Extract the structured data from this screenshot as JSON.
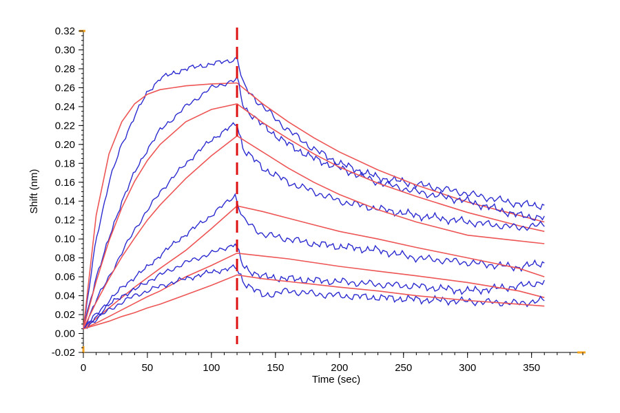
{
  "chart_data": {
    "type": "line",
    "title": "",
    "xlabel": "Time (sec)",
    "ylabel": "Shift (nm)",
    "xlim": [
      0,
      390
    ],
    "ylim": [
      -0.02,
      0.32
    ],
    "x_ticks": [
      0,
      50,
      100,
      150,
      200,
      250,
      300,
      350
    ],
    "x_tick_labels": [
      "0",
      "50",
      "100",
      "150",
      "200",
      "250",
      "300",
      "350"
    ],
    "y_ticks": [
      -0.02,
      0.0,
      0.02,
      0.04,
      0.06,
      0.08,
      0.1,
      0.12,
      0.14,
      0.16,
      0.18,
      0.2,
      0.22,
      0.24,
      0.26,
      0.28,
      0.3,
      0.32
    ],
    "y_tick_labels": [
      "-0.02",
      "0.00",
      "0.02",
      "0.04",
      "0.06",
      "0.08",
      "0.10",
      "0.12",
      "0.14",
      "0.16",
      "0.18",
      "0.20",
      "0.22",
      "0.24",
      "0.26",
      "0.28",
      "0.30",
      "0.32"
    ],
    "grid": false,
    "legend": "none",
    "colors": {
      "measured": "#2b2bd0",
      "fit": "#ee5555",
      "marker": "#dd1111",
      "axis_end": "#f2a21a"
    },
    "vertical_marker_x": 120,
    "series": [
      {
        "kind": "measured",
        "color": "#2b2bd0",
        "x": [
          0,
          10,
          20,
          30,
          40,
          50,
          60,
          80,
          100,
          119,
          120,
          125,
          140,
          160,
          180,
          200,
          230,
          260,
          300,
          340,
          360
        ],
        "y": [
          0.005,
          0.1,
          0.16,
          0.2,
          0.23,
          0.255,
          0.27,
          0.28,
          0.285,
          0.29,
          0.292,
          0.262,
          0.24,
          0.215,
          0.195,
          0.18,
          0.165,
          0.158,
          0.148,
          0.137,
          0.135
        ]
      },
      {
        "kind": "fit",
        "color": "#ee5555",
        "x": [
          0,
          10,
          20,
          30,
          40,
          50,
          60,
          80,
          100,
          120,
          140,
          160,
          180,
          200,
          230,
          260,
          300,
          340,
          360
        ],
        "y": [
          0.005,
          0.125,
          0.19,
          0.224,
          0.243,
          0.253,
          0.258,
          0.262,
          0.264,
          0.265,
          0.243,
          0.224,
          0.207,
          0.192,
          0.173,
          0.157,
          0.139,
          0.125,
          0.118
        ]
      },
      {
        "kind": "measured",
        "color": "#2b2bd0",
        "x": [
          0,
          10,
          20,
          30,
          40,
          50,
          60,
          80,
          100,
          119,
          120,
          125,
          140,
          160,
          180,
          200,
          230,
          260,
          300,
          340,
          360
        ],
        "y": [
          0.005,
          0.06,
          0.1,
          0.14,
          0.17,
          0.195,
          0.215,
          0.24,
          0.26,
          0.268,
          0.27,
          0.24,
          0.22,
          0.2,
          0.185,
          0.175,
          0.16,
          0.15,
          0.14,
          0.125,
          0.122
        ]
      },
      {
        "kind": "fit",
        "color": "#ee5555",
        "x": [
          0,
          10,
          20,
          30,
          40,
          50,
          60,
          80,
          100,
          120,
          140,
          160,
          180,
          200,
          230,
          260,
          300,
          340,
          360
        ],
        "y": [
          0.005,
          0.055,
          0.098,
          0.133,
          0.161,
          0.183,
          0.2,
          0.224,
          0.237,
          0.243,
          0.223,
          0.206,
          0.19,
          0.176,
          0.159,
          0.145,
          0.128,
          0.114,
          0.108
        ]
      },
      {
        "kind": "measured",
        "color": "#2b2bd0",
        "x": [
          0,
          10,
          20,
          30,
          40,
          50,
          60,
          80,
          100,
          119,
          120,
          125,
          140,
          160,
          180,
          200,
          230,
          260,
          300,
          340,
          360
        ],
        "y": [
          0.005,
          0.035,
          0.06,
          0.085,
          0.11,
          0.13,
          0.15,
          0.18,
          0.205,
          0.222,
          0.222,
          0.195,
          0.175,
          0.16,
          0.15,
          0.14,
          0.132,
          0.125,
          0.118,
          0.112,
          0.115
        ]
      },
      {
        "kind": "fit",
        "color": "#ee5555",
        "x": [
          0,
          10,
          20,
          30,
          40,
          50,
          60,
          80,
          100,
          120,
          140,
          160,
          180,
          200,
          230,
          260,
          300,
          340,
          360
        ],
        "y": [
          0.005,
          0.033,
          0.058,
          0.081,
          0.101,
          0.12,
          0.136,
          0.164,
          0.188,
          0.209,
          0.192,
          0.175,
          0.16,
          0.147,
          0.131,
          0.118,
          0.104,
          0.098,
          0.095
        ]
      },
      {
        "kind": "measured",
        "color": "#2b2bd0",
        "x": [
          0,
          10,
          20,
          30,
          40,
          50,
          60,
          80,
          100,
          119,
          120,
          125,
          140,
          160,
          180,
          200,
          230,
          260,
          300,
          340,
          360
        ],
        "y": [
          0.005,
          0.02,
          0.035,
          0.048,
          0.06,
          0.07,
          0.083,
          0.105,
          0.125,
          0.147,
          0.14,
          0.12,
          0.105,
          0.1,
          0.095,
          0.092,
          0.088,
          0.08,
          0.075,
          0.07,
          0.075
        ]
      },
      {
        "kind": "fit",
        "color": "#ee5555",
        "x": [
          0,
          10,
          20,
          30,
          40,
          50,
          60,
          80,
          100,
          120,
          140,
          160,
          180,
          200,
          230,
          260,
          300,
          340,
          360
        ],
        "y": [
          0.005,
          0.016,
          0.027,
          0.038,
          0.049,
          0.059,
          0.069,
          0.088,
          0.111,
          0.135,
          0.129,
          0.122,
          0.115,
          0.108,
          0.1,
          0.091,
          0.08,
          0.069,
          0.06
        ]
      },
      {
        "kind": "measured",
        "color": "#2b2bd0",
        "x": [
          0,
          10,
          20,
          30,
          40,
          50,
          60,
          80,
          100,
          119,
          120,
          125,
          140,
          160,
          180,
          200,
          230,
          260,
          300,
          340,
          360
        ],
        "y": [
          0.005,
          0.018,
          0.03,
          0.04,
          0.046,
          0.055,
          0.062,
          0.075,
          0.085,
          0.095,
          0.09,
          0.07,
          0.06,
          0.058,
          0.056,
          0.055,
          0.052,
          0.05,
          0.045,
          0.05,
          0.055
        ]
      },
      {
        "kind": "fit",
        "color": "#ee5555",
        "x": [
          0,
          10,
          20,
          30,
          40,
          50,
          60,
          80,
          100,
          120,
          140,
          160,
          180,
          200,
          230,
          260,
          300,
          340,
          360
        ],
        "y": [
          0.005,
          0.011,
          0.018,
          0.025,
          0.032,
          0.039,
          0.045,
          0.06,
          0.072,
          0.085,
          0.082,
          0.079,
          0.075,
          0.071,
          0.066,
          0.061,
          0.054,
          0.045,
          0.038
        ]
      },
      {
        "kind": "measured",
        "color": "#2b2bd0",
        "x": [
          0,
          10,
          20,
          30,
          40,
          50,
          60,
          80,
          100,
          119,
          120,
          125,
          140,
          160,
          180,
          200,
          230,
          260,
          300,
          340,
          360
        ],
        "y": [
          0.005,
          0.015,
          0.025,
          0.033,
          0.04,
          0.045,
          0.05,
          0.058,
          0.065,
          0.07,
          0.068,
          0.055,
          0.04,
          0.045,
          0.042,
          0.04,
          0.038,
          0.036,
          0.034,
          0.032,
          0.035
        ]
      },
      {
        "kind": "fit",
        "color": "#ee5555",
        "x": [
          0,
          10,
          20,
          30,
          40,
          50,
          60,
          80,
          100,
          120,
          140,
          160,
          180,
          200,
          230,
          260,
          300,
          340,
          360
        ],
        "y": [
          0.005,
          0.009,
          0.013,
          0.018,
          0.022,
          0.027,
          0.031,
          0.041,
          0.051,
          0.062,
          0.058,
          0.055,
          0.052,
          0.049,
          0.045,
          0.04,
          0.035,
          0.031,
          0.029
        ]
      }
    ]
  }
}
